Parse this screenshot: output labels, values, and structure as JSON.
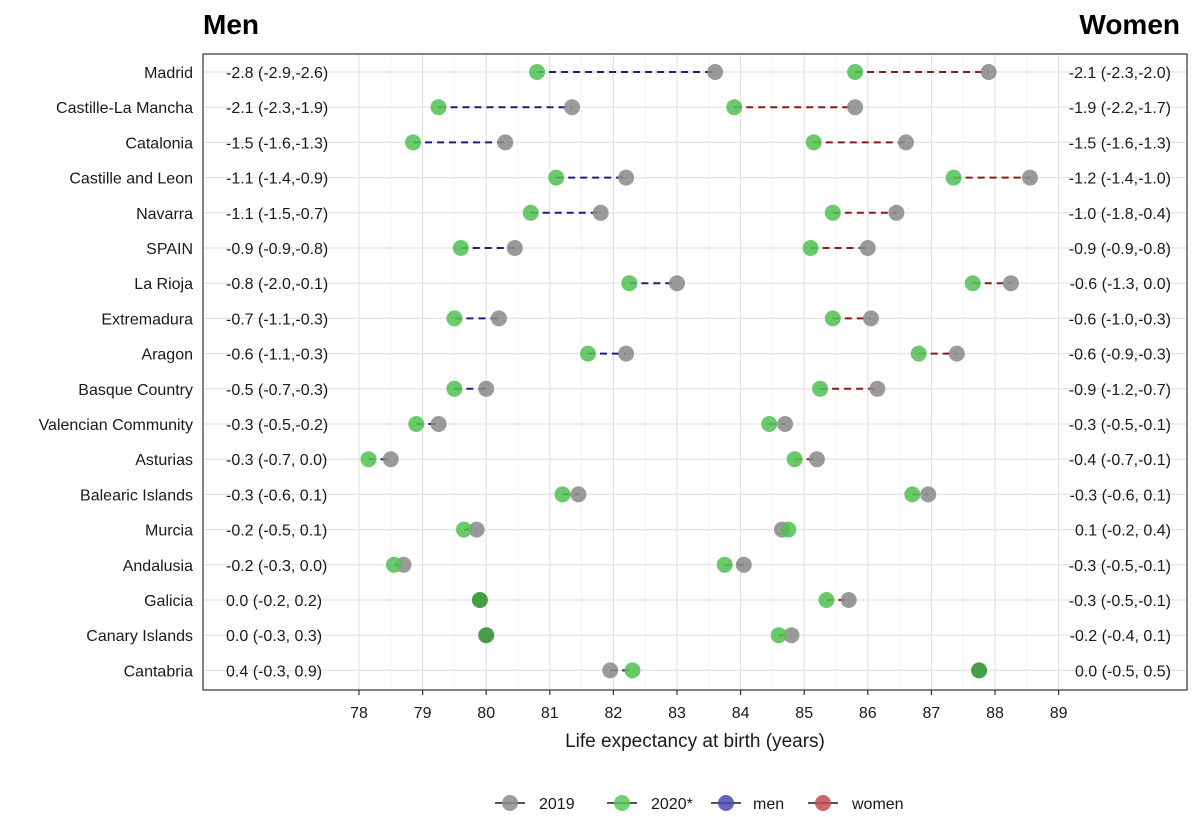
{
  "chart_data": {
    "type": "scatter",
    "subtype": "dumbbell",
    "panels": {
      "men_title": "Men",
      "women_title": "Women"
    },
    "xlabel": "Life expectancy at birth (years)",
    "xticks": [
      78,
      79,
      80,
      81,
      82,
      83,
      84,
      85,
      86,
      87,
      88,
      89
    ],
    "xlim": [
      75.8,
      89.2
    ],
    "legend": {
      "position": "bottom",
      "items": [
        {
          "label": "2019",
          "color": "#8c8c8c"
        },
        {
          "label": "2020*",
          "color": "#5cc85c"
        },
        {
          "label": "men",
          "color": "#4a4ab0"
        },
        {
          "label": "women",
          "color": "#c05050"
        }
      ]
    },
    "colors": {
      "y2019": "#8c8c8c",
      "y2020": "#55c255",
      "overlap": "#2f8f2f",
      "men_line": "#1f1f7a",
      "women_line": "#8b1a1a"
    },
    "rows": [
      {
        "region": "Madrid",
        "men_2019": 83.6,
        "men_2020": 80.8,
        "women_2019": 87.9,
        "women_2020": 85.8,
        "men_ci": "-2.8 (-2.9,-2.6)",
        "women_ci": "-2.1 (-2.3,-2.0)"
      },
      {
        "region": "Castille-La Mancha",
        "men_2019": 81.35,
        "men_2020": 79.25,
        "women_2019": 85.8,
        "women_2020": 83.9,
        "men_ci": "-2.1 (-2.3,-1.9)",
        "women_ci": "-1.9 (-2.2,-1.7)"
      },
      {
        "region": "Catalonia",
        "men_2019": 80.3,
        "men_2020": 78.85,
        "women_2019": 86.6,
        "women_2020": 85.15,
        "men_ci": "-1.5 (-1.6,-1.3)",
        "women_ci": "-1.5 (-1.6,-1.3)"
      },
      {
        "region": "Castille and Leon",
        "men_2019": 82.2,
        "men_2020": 81.1,
        "women_2019": 88.55,
        "women_2020": 87.35,
        "men_ci": "-1.1 (-1.4,-0.9)",
        "women_ci": "-1.2 (-1.4,-1.0)"
      },
      {
        "region": "Navarra",
        "men_2019": 81.8,
        "men_2020": 80.7,
        "women_2019": 86.45,
        "women_2020": 85.45,
        "men_ci": "-1.1 (-1.5,-0.7)",
        "women_ci": "-1.0 (-1.8,-0.4)"
      },
      {
        "region": "SPAIN",
        "men_2019": 80.45,
        "men_2020": 79.6,
        "women_2019": 86.0,
        "women_2020": 85.1,
        "men_ci": "-0.9 (-0.9,-0.8)",
        "women_ci": "-0.9 (-0.9,-0.8)"
      },
      {
        "region": "La Rioja",
        "men_2019": 83.0,
        "men_2020": 82.25,
        "women_2019": 88.25,
        "women_2020": 87.65,
        "men_ci": "-0.8 (-2.0,-0.1)",
        "women_ci": "-0.6 (-1.3, 0.0)"
      },
      {
        "region": "Extremadura",
        "men_2019": 80.2,
        "men_2020": 79.5,
        "women_2019": 86.05,
        "women_2020": 85.45,
        "men_ci": "-0.7 (-1.1,-0.3)",
        "women_ci": "-0.6 (-1.0,-0.3)"
      },
      {
        "region": "Aragon",
        "men_2019": 82.2,
        "men_2020": 81.6,
        "women_2019": 87.4,
        "women_2020": 86.8,
        "men_ci": "-0.6 (-1.1,-0.3)",
        "women_ci": "-0.6 (-0.9,-0.3)"
      },
      {
        "region": "Basque Country",
        "men_2019": 80.0,
        "men_2020": 79.5,
        "women_2019": 86.15,
        "women_2020": 85.25,
        "men_ci": "-0.5 (-0.7,-0.3)",
        "women_ci": "-0.9 (-1.2,-0.7)"
      },
      {
        "region": "Valencian Community",
        "men_2019": 79.25,
        "men_2020": 78.9,
        "women_2019": 84.7,
        "women_2020": 84.45,
        "men_ci": "-0.3 (-0.5,-0.2)",
        "women_ci": "-0.3 (-0.5,-0.1)"
      },
      {
        "region": "Asturias",
        "men_2019": 78.5,
        "men_2020": 78.15,
        "women_2019": 85.2,
        "women_2020": 84.85,
        "men_ci": "-0.3 (-0.7, 0.0)",
        "women_ci": "-0.4 (-0.7,-0.1)"
      },
      {
        "region": "Balearic Islands",
        "men_2019": 81.45,
        "men_2020": 81.2,
        "women_2019": 86.95,
        "women_2020": 86.7,
        "men_ci": "-0.3 (-0.6, 0.1)",
        "women_ci": "-0.3 (-0.6, 0.1)"
      },
      {
        "region": "Murcia",
        "men_2019": 79.85,
        "men_2020": 79.65,
        "women_2019": 84.65,
        "women_2020": 84.75,
        "men_ci": "-0.2 (-0.5, 0.1)",
        "women_ci": "0.1 (-0.2, 0.4)"
      },
      {
        "region": "Andalusia",
        "men_2019": 78.7,
        "men_2020": 78.55,
        "women_2019": 84.05,
        "women_2020": 83.75,
        "men_ci": "-0.2 (-0.3, 0.0)",
        "women_ci": "-0.3 (-0.5,-0.1)"
      },
      {
        "region": "Galicia",
        "men_2019": 79.9,
        "men_2020": 79.9,
        "women_2019": 85.7,
        "women_2020": 85.35,
        "men_ci": "0.0 (-0.2, 0.2)",
        "women_ci": "-0.3 (-0.5,-0.1)"
      },
      {
        "region": "Canary Islands",
        "men_2019": 80.0,
        "men_2020": 80.0,
        "women_2019": 84.8,
        "women_2020": 84.6,
        "men_ci": "0.0 (-0.3, 0.3)",
        "women_ci": "-0.2 (-0.4, 0.1)"
      },
      {
        "region": "Cantabria",
        "men_2019": 81.95,
        "men_2020": 82.3,
        "women_2019": 87.75,
        "women_2020": 87.75,
        "men_ci": "0.4 (-0.3, 0.9)",
        "women_ci": "0.0 (-0.5, 0.5)"
      }
    ]
  }
}
